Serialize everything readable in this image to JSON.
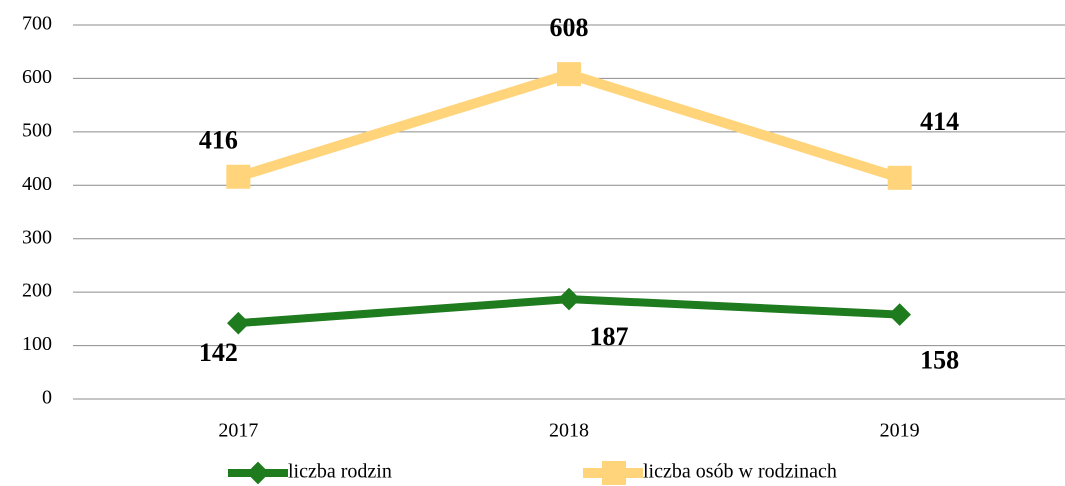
{
  "chart_data": {
    "type": "line",
    "categories": [
      "2017",
      "2018",
      "2019"
    ],
    "series": [
      {
        "name": "liczba rodzin",
        "color": "#1e7b1e",
        "values": [
          142,
          187,
          158
        ]
      },
      {
        "name": "liczba osób w rodzinach",
        "color": "#ffd47a",
        "values": [
          416,
          608,
          414
        ]
      }
    ],
    "ylim": [
      0,
      700
    ],
    "yticks": [
      0,
      100,
      200,
      300,
      400,
      500,
      600,
      700
    ],
    "grid": true,
    "legend": "bottom"
  }
}
